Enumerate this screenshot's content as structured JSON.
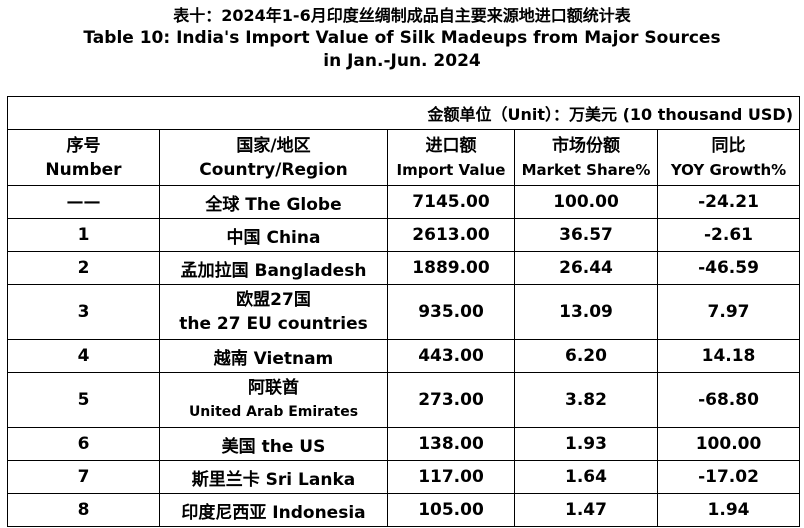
{
  "title": {
    "cn": "表十：2024年1-6月印度丝绸制成品自主要来源地进口额统计表",
    "en_line1": "Table 10: India's Import Value of Silk Madeups from Major Sources",
    "en_line2": "in Jan.-Jun. 2024"
  },
  "unit_note": "金额单位（Unit）：万美元 (10 thousand USD)",
  "headers": {
    "number_cn": "序号",
    "number_en": "Number",
    "country_cn": "国家/地区",
    "country_en": "Country/Region",
    "import_cn": "进口额",
    "import_en": "Import Value",
    "share_cn": "市场份额",
    "share_en": "Market Share%",
    "yoy_cn": "同比",
    "yoy_en": "YOY Growth%"
  },
  "rows": [
    {
      "num": "——",
      "country": "全球 The Globe",
      "import": "7145.00",
      "share": "100.00",
      "yoy": "-24.21"
    },
    {
      "num": "1",
      "country": "中国 China",
      "import": "2613.00",
      "share": "36.57",
      "yoy": "-2.61"
    },
    {
      "num": "2",
      "country": "孟加拉国 Bangladesh",
      "import": "1889.00",
      "share": "26.44",
      "yoy": "-46.59"
    },
    {
      "num": "3",
      "country_l1": "欧盟27国",
      "country_l2": "the 27 EU countries",
      "import": "935.00",
      "share": "13.09",
      "yoy": "7.97"
    },
    {
      "num": "4",
      "country": "越南 Vietnam",
      "import": "443.00",
      "share": "6.20",
      "yoy": "14.18"
    },
    {
      "num": "5",
      "country_l1": "阿联酋",
      "country_l2": "United Arab Emirates",
      "import": "273.00",
      "share": "3.82",
      "yoy": "-68.80"
    },
    {
      "num": "6",
      "country": "美国 the US",
      "import": "138.00",
      "share": "1.93",
      "yoy": "100.00"
    },
    {
      "num": "7",
      "country": "斯里兰卡 Sri Lanka",
      "import": "117.00",
      "share": "1.64",
      "yoy": "-17.02"
    },
    {
      "num": "8",
      "country": "印度尼西亚 Indonesia",
      "import": "105.00",
      "share": "1.47",
      "yoy": "1.94"
    }
  ]
}
